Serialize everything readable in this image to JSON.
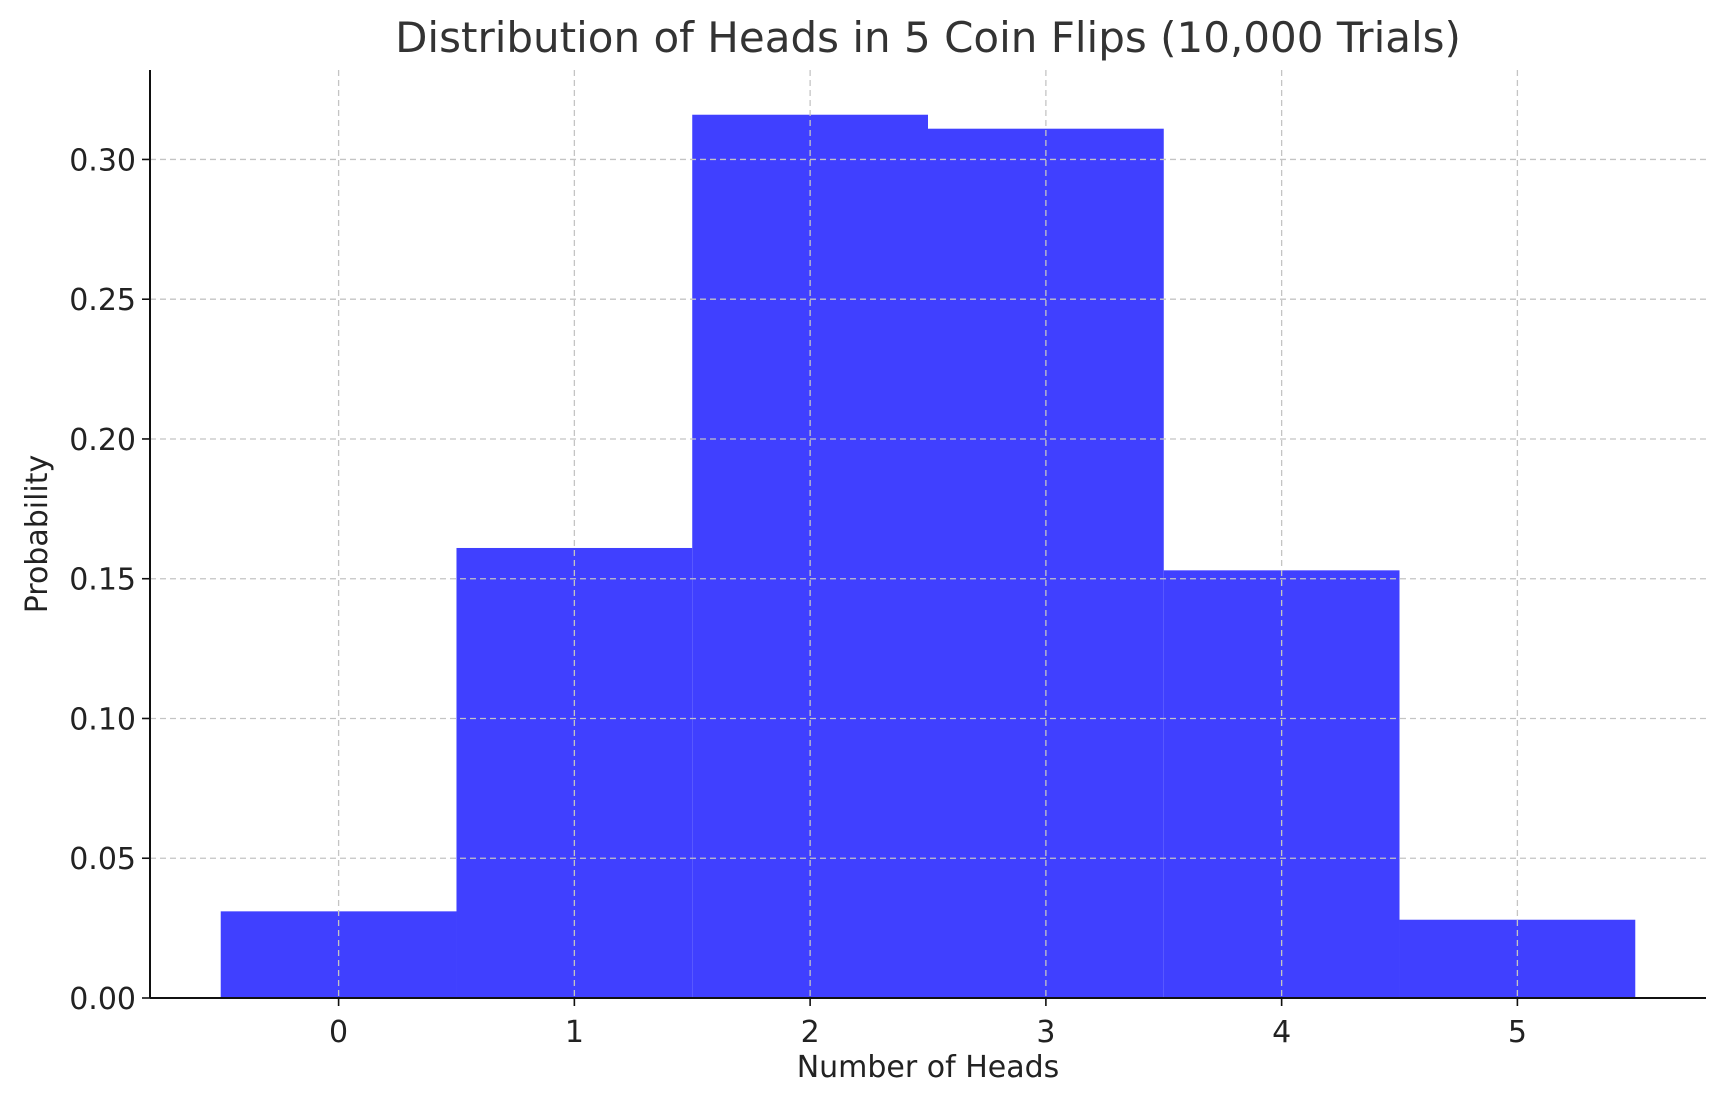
{
  "chart_data": {
    "type": "bar",
    "title": "Distribution of Heads in 5 Coin Flips (10,000 Trials)",
    "xlabel": "Number of Heads",
    "ylabel": "Probability",
    "categories": [
      "0",
      "1",
      "2",
      "3",
      "4",
      "5"
    ],
    "values": [
      0.031,
      0.161,
      0.316,
      0.311,
      0.153,
      0.028
    ],
    "bar_color": "#4040ff",
    "xlim": [
      -0.8,
      5.8
    ],
    "ylim": [
      0,
      0.332
    ],
    "x_ticks": [
      0,
      1,
      2,
      3,
      4,
      5
    ],
    "y_ticks": [
      "0.00",
      "0.05",
      "0.10",
      "0.15",
      "0.20",
      "0.25",
      "0.30"
    ],
    "grid": true
  }
}
